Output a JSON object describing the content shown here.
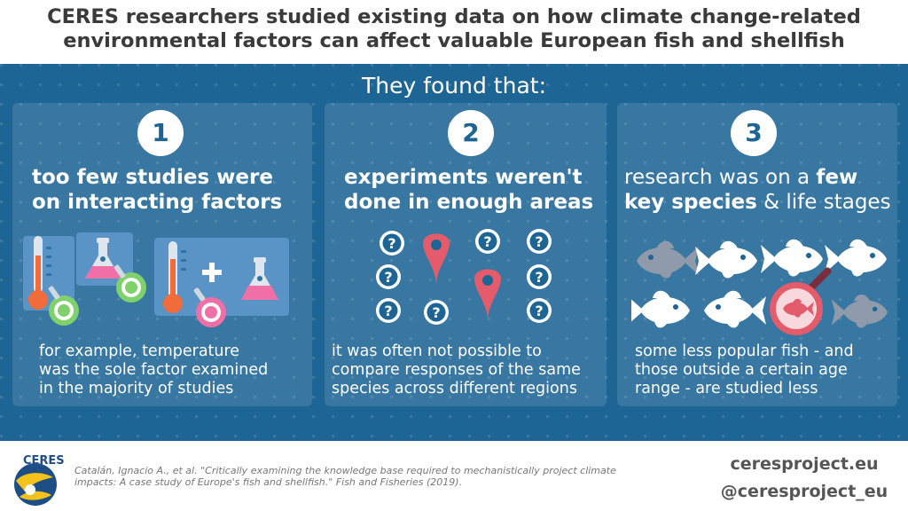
{
  "title": {
    "line1": "CERES researchers studied existing data on how climate change-related",
    "line2": "environmental factors can affect valuable European fish and shellfish"
  },
  "subtitle": "They found that:",
  "findings": [
    {
      "number": "1",
      "heading_line1": "too few studies were",
      "heading_line2": "on interacting factors",
      "desc_line1": "for example, temperature",
      "desc_line2": "was the sole factor examined",
      "desc_line3": "in the majority of studies",
      "icons": [
        "thermometer-icon",
        "magnifier-icon",
        "flask-icon",
        "plus-icon"
      ]
    },
    {
      "number": "2",
      "heading_line1": "experiments weren't",
      "heading_line2": "done in enough areas",
      "desc_line1": "it was often not possible to",
      "desc_line2": "compare responses of the same",
      "desc_line3": "species across different regions",
      "question_mark": "?",
      "icons": [
        "question-mark-icon",
        "map-pin-icon"
      ]
    },
    {
      "number": "3",
      "heading_line1_a": "research was on a ",
      "heading_line1_b": "few",
      "heading_line2_a": "key species",
      "heading_line2_b": " & life stages",
      "desc_line1": "some less popular fish - and",
      "desc_line2": "those outside a certain age",
      "desc_line3": "range - are studied less",
      "icons": [
        "fish-icon",
        "magnifier-icon"
      ]
    }
  ],
  "citation": {
    "line1": "Catalán, Ignacio A., et al. \"Critically examining the knowledge base required to mechanistically project climate",
    "line2": "impacts: A case study of Europe's fish and shellfish.\" Fish and Fisheries (2019)."
  },
  "logo_text": "CERES",
  "website": "ceresproject.eu",
  "handle": "@ceresproject_eu",
  "colors": {
    "panel_blue": "#1d6594",
    "pin_red": "#e45b6b",
    "thermometer_orange": "#f26b3a",
    "flask_pink": "#ef6fa6",
    "magnifier_green": "#7fd16b",
    "fish_grey": "#8f9bab"
  }
}
